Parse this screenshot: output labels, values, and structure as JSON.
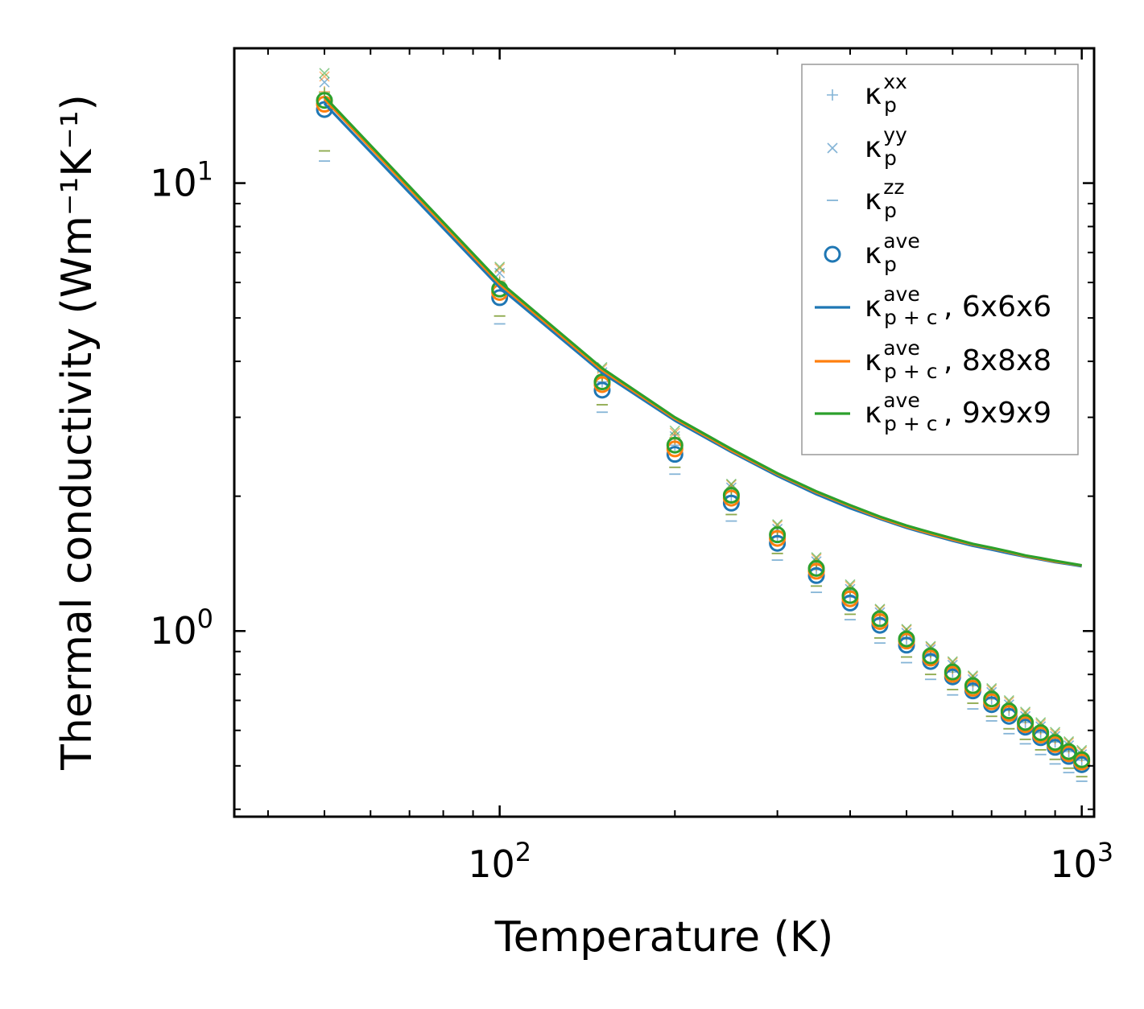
{
  "chart_data": {
    "type": "scatter",
    "title": "",
    "xlabel": "Temperature (K)",
    "ylabel": "Thermal conductivity (Wm⁻¹K⁻¹)",
    "xscale": "log",
    "yscale": "log",
    "xlim": [
      35,
      1050
    ],
    "ylim": [
      0.385,
      20
    ],
    "xticks": [
      {
        "value": 100,
        "base": "10",
        "exp": "2"
      },
      {
        "value": 1000,
        "base": "10",
        "exp": "3"
      }
    ],
    "yticks": [
      {
        "value": 1,
        "base": "10",
        "exp": "0"
      },
      {
        "value": 10,
        "base": "10",
        "exp": "1"
      }
    ],
    "x": [
      50,
      100,
      150,
      200,
      250,
      300,
      350,
      400,
      450,
      500,
      550,
      600,
      650,
      700,
      750,
      800,
      850,
      900,
      950,
      1000
    ],
    "markers": {
      "kxx": [
        [
          15.5,
          16.0,
          15.9
        ],
        [
          5.9,
          6.05,
          6.0
        ],
        [
          3.6,
          3.7,
          3.72
        ],
        [
          2.6,
          2.68,
          2.7
        ],
        [
          2.0,
          2.05,
          2.06
        ],
        [
          1.62,
          1.66,
          1.67
        ],
        [
          1.37,
          1.4,
          1.41
        ],
        [
          1.19,
          1.22,
          1.23
        ],
        [
          1.06,
          1.08,
          1.09
        ],
        [
          0.96,
          0.98,
          0.985
        ],
        [
          0.88,
          0.895,
          0.9
        ],
        [
          0.81,
          0.825,
          0.83
        ],
        [
          0.755,
          0.77,
          0.775
        ],
        [
          0.705,
          0.72,
          0.725
        ],
        [
          0.665,
          0.675,
          0.68
        ],
        [
          0.625,
          0.637,
          0.642
        ],
        [
          0.593,
          0.604,
          0.609
        ],
        [
          0.565,
          0.575,
          0.58
        ],
        [
          0.538,
          0.548,
          0.553
        ],
        [
          0.515,
          0.525,
          0.529
        ]
      ],
      "kyy": [
        [
          16.8,
          17.3,
          17.6
        ],
        [
          6.3,
          6.45,
          6.5
        ],
        [
          3.78,
          3.85,
          3.88
        ],
        [
          2.72,
          2.77,
          2.8
        ],
        [
          2.09,
          2.12,
          2.13
        ],
        [
          1.69,
          1.72,
          1.73
        ],
        [
          1.43,
          1.45,
          1.46
        ],
        [
          1.24,
          1.26,
          1.27
        ],
        [
          1.1,
          1.115,
          1.12
        ],
        [
          0.99,
          1.005,
          1.01
        ],
        [
          0.91,
          0.92,
          0.925
        ],
        [
          0.84,
          0.85,
          0.855
        ],
        [
          0.78,
          0.79,
          0.795
        ],
        [
          0.73,
          0.74,
          0.745
        ],
        [
          0.685,
          0.695,
          0.7
        ],
        [
          0.645,
          0.655,
          0.66
        ],
        [
          0.612,
          0.62,
          0.625
        ],
        [
          0.582,
          0.59,
          0.595
        ],
        [
          0.555,
          0.563,
          0.567
        ],
        [
          0.53,
          0.538,
          0.542
        ]
      ],
      "kzz": [
        [
          11.2,
          11.8,
          11.8
        ],
        [
          4.85,
          5.05,
          5.05
        ],
        [
          3.08,
          3.2,
          3.2
        ],
        [
          2.24,
          2.32,
          2.32
        ],
        [
          1.76,
          1.82,
          1.82
        ],
        [
          1.44,
          1.49,
          1.49
        ],
        [
          1.22,
          1.26,
          1.26
        ],
        [
          1.06,
          1.09,
          1.09
        ],
        [
          0.94,
          0.965,
          0.965
        ],
        [
          0.85,
          0.875,
          0.875
        ],
        [
          0.78,
          0.8,
          0.8
        ],
        [
          0.72,
          0.74,
          0.74
        ],
        [
          0.67,
          0.69,
          0.69
        ],
        [
          0.63,
          0.645,
          0.645
        ],
        [
          0.59,
          0.605,
          0.605
        ],
        [
          0.56,
          0.573,
          0.573
        ],
        [
          0.53,
          0.543,
          0.543
        ],
        [
          0.505,
          0.517,
          0.517
        ],
        [
          0.483,
          0.494,
          0.494
        ],
        [
          0.462,
          0.473,
          0.473
        ]
      ],
      "kave": [
        [
          14.6,
          15.0,
          15.3
        ],
        [
          5.55,
          5.7,
          5.8
        ],
        [
          3.45,
          3.55,
          3.6
        ],
        [
          2.48,
          2.55,
          2.6
        ],
        [
          1.93,
          1.98,
          2.01
        ],
        [
          1.57,
          1.61,
          1.64
        ],
        [
          1.33,
          1.36,
          1.38
        ],
        [
          1.155,
          1.18,
          1.2
        ],
        [
          1.03,
          1.05,
          1.065
        ],
        [
          0.93,
          0.95,
          0.96
        ],
        [
          0.855,
          0.87,
          0.88
        ],
        [
          0.79,
          0.8,
          0.81
        ],
        [
          0.735,
          0.745,
          0.755
        ],
        [
          0.685,
          0.695,
          0.705
        ],
        [
          0.645,
          0.655,
          0.663
        ],
        [
          0.61,
          0.618,
          0.625
        ],
        [
          0.578,
          0.586,
          0.593
        ],
        [
          0.55,
          0.558,
          0.564
        ],
        [
          0.525,
          0.532,
          0.538
        ],
        [
          0.503,
          0.51,
          0.516
        ]
      ]
    },
    "lines": [
      [
        15.05,
        5.85,
        3.77,
        2.95,
        2.51,
        2.22,
        2.02,
        1.88,
        1.78,
        1.7,
        1.64,
        1.59,
        1.55,
        1.52,
        1.49,
        1.465,
        1.445,
        1.425,
        1.41,
        1.395
      ],
      [
        15.4,
        5.95,
        3.82,
        2.98,
        2.53,
        2.24,
        2.04,
        1.9,
        1.79,
        1.71,
        1.65,
        1.6,
        1.56,
        1.53,
        1.5,
        1.47,
        1.45,
        1.43,
        1.415,
        1.4
      ],
      [
        15.6,
        6.02,
        3.86,
        3.0,
        2.55,
        2.25,
        2.05,
        1.91,
        1.8,
        1.72,
        1.66,
        1.61,
        1.565,
        1.535,
        1.505,
        1.475,
        1.455,
        1.435,
        1.418,
        1.402
      ]
    ],
    "datasets": [
      {
        "name": "6x6x6",
        "color": "#1f77b4"
      },
      {
        "name": "8x8x8",
        "color": "#ff7f0e"
      },
      {
        "name": "9x9x9",
        "color": "#2ca02c"
      }
    ],
    "legend_position": "top-right",
    "legend": [
      {
        "key": "kxx",
        "marker": "plus",
        "symbol": "κ",
        "sub": "p",
        "sup": "xx",
        "suffix": ""
      },
      {
        "key": "kyy",
        "marker": "cross",
        "symbol": "κ",
        "sub": "p",
        "sup": "yy",
        "suffix": ""
      },
      {
        "key": "kzz",
        "marker": "dash",
        "symbol": "κ",
        "sub": "p",
        "sup": "zz",
        "suffix": ""
      },
      {
        "key": "kave",
        "marker": "circle",
        "symbol": "κ",
        "sub": "p",
        "sup": "ave",
        "suffix": ""
      },
      {
        "key": "line0",
        "marker": "line",
        "symbol": "κ",
        "sub": "p + c",
        "sup": "ave",
        "suffix": ", 6x6x6"
      },
      {
        "key": "line1",
        "marker": "line",
        "symbol": "κ",
        "sub": "p + c",
        "sup": "ave",
        "suffix": ", 8x8x8"
      },
      {
        "key": "line2",
        "marker": "line",
        "symbol": "κ",
        "sub": "p + c",
        "sup": "ave",
        "suffix": ", 9x9x9"
      }
    ],
    "grid": false
  }
}
